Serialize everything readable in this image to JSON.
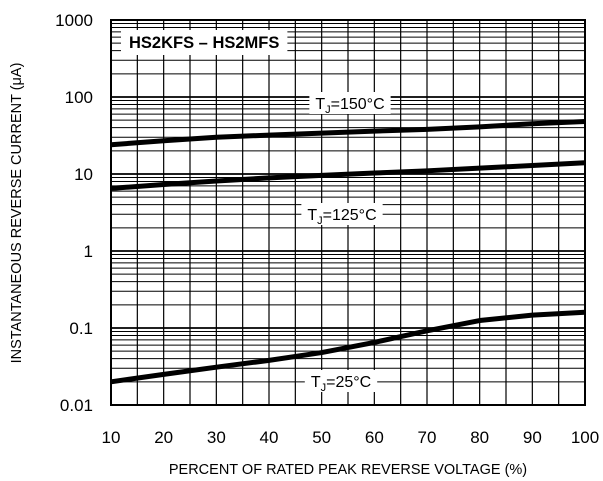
{
  "chart_data": {
    "type": "line",
    "title": "HS2KFS – HS2MFS",
    "xlabel": "PERCENT OF RATED PEAK REVERSE VOLTAGE (%)",
    "ylabel": "INSTANTANEOUS REVERSE CURRENT (μA)",
    "xlim": [
      10,
      100
    ],
    "ylim": [
      0.01,
      1000
    ],
    "yscale": "log",
    "grid": true,
    "x_ticks": [
      "10",
      "20",
      "30",
      "40",
      "50",
      "60",
      "70",
      "80",
      "90",
      "100"
    ],
    "y_ticks": [
      "0.01",
      "0.1",
      "1",
      "10",
      "100",
      "1000"
    ],
    "series": [
      {
        "name": "TJ=150°C",
        "label_main": "T",
        "label_sub": "J",
        "label_rest": "=150°C",
        "x": [
          10,
          20,
          30,
          40,
          50,
          60,
          70,
          80,
          90,
          100
        ],
        "y": [
          24,
          27,
          30,
          32,
          34,
          36,
          38,
          41,
          45,
          48
        ]
      },
      {
        "name": "TJ=125°C",
        "label_main": "T",
        "label_sub": "J",
        "label_rest": "=125°C",
        "x": [
          10,
          20,
          30,
          40,
          50,
          60,
          70,
          80,
          90,
          100
        ],
        "y": [
          6.5,
          7.3,
          8.1,
          8.9,
          9.6,
          10.3,
          11,
          11.9,
          12.9,
          14
        ]
      },
      {
        "name": "TJ=25°C",
        "label_main": "T",
        "label_sub": "J",
        "label_rest": "=25°C",
        "x": [
          10,
          20,
          30,
          40,
          50,
          60,
          70,
          80,
          90,
          100
        ],
        "y": [
          0.02,
          0.025,
          0.031,
          0.038,
          0.048,
          0.065,
          0.092,
          0.125,
          0.147,
          0.16
        ]
      }
    ]
  }
}
